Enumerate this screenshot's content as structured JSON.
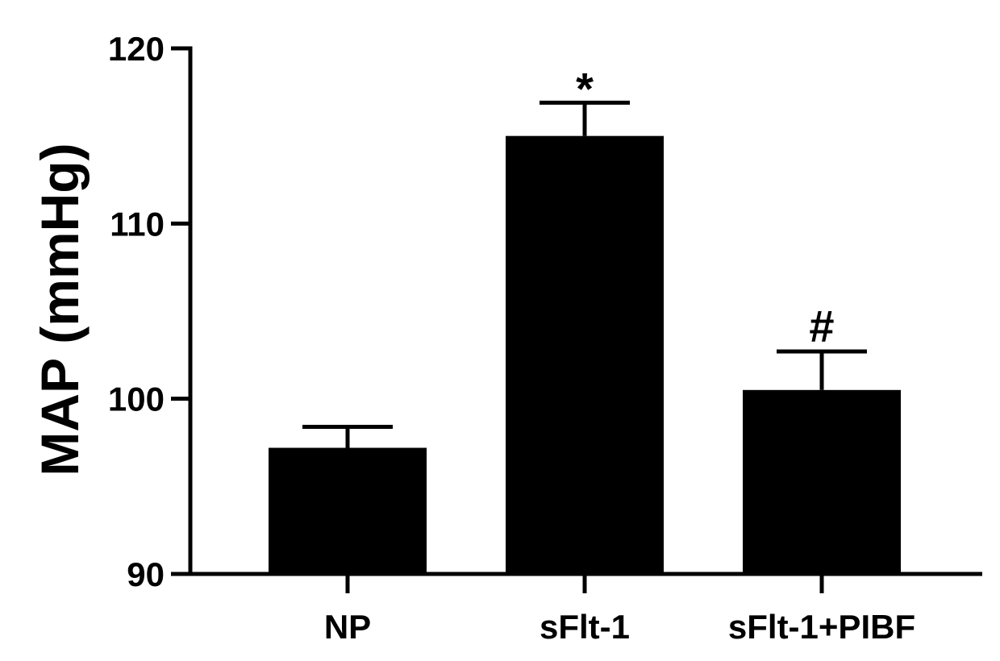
{
  "chart_data": {
    "type": "bar",
    "title": "",
    "xlabel": "",
    "ylabel": "MAP (mmHg)",
    "ylim": [
      90,
      120
    ],
    "yticks": [
      90,
      100,
      110,
      120
    ],
    "categories": [
      "NP",
      "sFlt-1",
      "sFlt-1+PIBF"
    ],
    "values": [
      97.2,
      115.0,
      100.5
    ],
    "errors": [
      1.2,
      1.9,
      2.2
    ],
    "annotations": [
      "",
      "*",
      "#"
    ],
    "bar_color": "#000000",
    "grid": false
  }
}
